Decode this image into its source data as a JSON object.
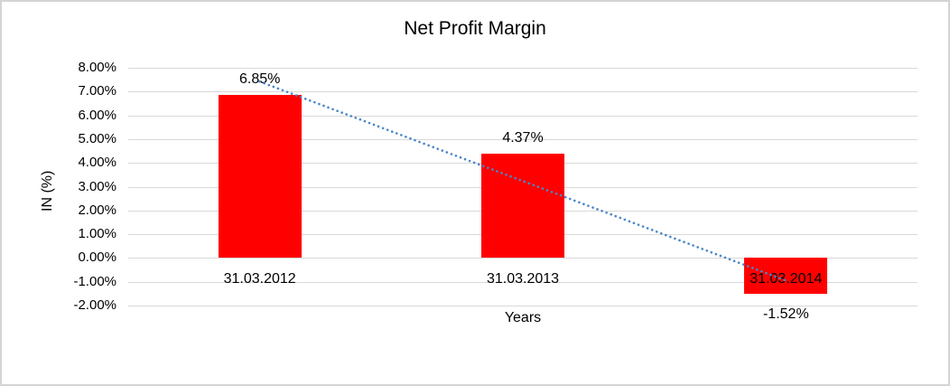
{
  "chart_data": {
    "type": "bar",
    "title": "Net Profit Margin",
    "xlabel": "Years",
    "ylabel": "IN (%)",
    "categories": [
      "31.03.2012",
      "31.03.2013",
      "31.03.2014"
    ],
    "values": [
      6.85,
      4.37,
      -1.52
    ],
    "data_labels": [
      "6.85%",
      "4.37%",
      "-1.52%"
    ],
    "ylim": [
      -2,
      8
    ],
    "ytick_values": [
      8,
      7,
      6,
      5,
      4,
      3,
      2,
      1,
      0,
      -1,
      -2
    ],
    "ytick_labels": [
      "8.00%",
      "7.00%",
      "6.00%",
      "5.00%",
      "4.00%",
      "3.00%",
      "2.00%",
      "1.00%",
      "0.00%",
      "-1.00%",
      "-2.00%"
    ],
    "grid": true,
    "legend": "none",
    "bar_color": "#ff0000",
    "gridline_color": "#d9d9d9",
    "text_color": "#000000",
    "frame_border_color": "#d4d4d4",
    "trendline": {
      "type": "linear",
      "style": "dotted",
      "color": "#4a86c8",
      "start_value": 7.42,
      "end_value": -0.95
    }
  }
}
